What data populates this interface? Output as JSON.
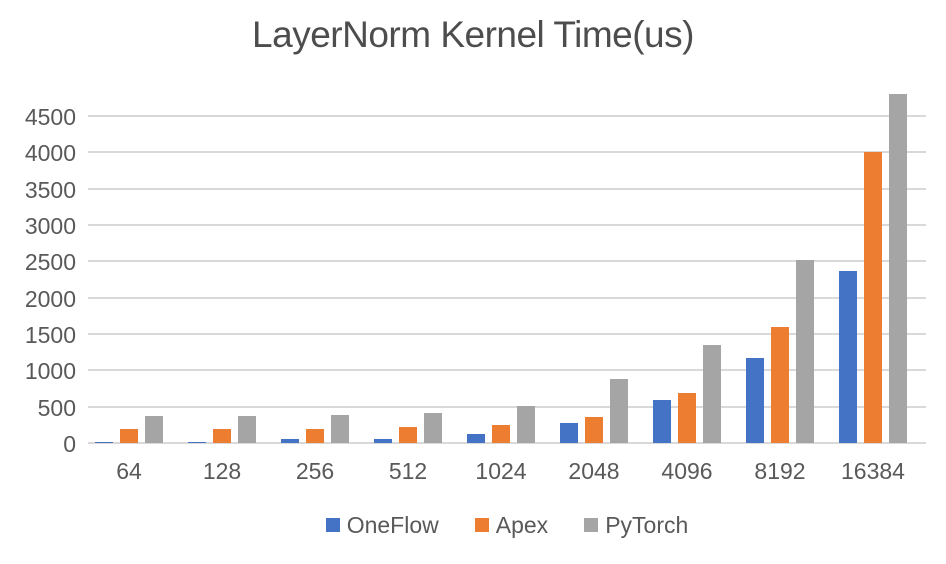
{
  "chart_data": {
    "type": "bar",
    "title": "LayerNorm Kernel Time(us)",
    "categories": [
      "64",
      "128",
      "256",
      "512",
      "1024",
      "2048",
      "4096",
      "8192",
      "16384"
    ],
    "series": [
      {
        "name": "OneFlow",
        "color": "#4472C4",
        "values": [
          10,
          10,
          50,
          55,
          120,
          280,
          585,
          1170,
          2370
        ]
      },
      {
        "name": "Apex",
        "color": "#ED7D31",
        "values": [
          190,
          190,
          195,
          220,
          245,
          360,
          690,
          1600,
          4000
        ]
      },
      {
        "name": "PyTorch",
        "color": "#A5A5A5",
        "values": [
          370,
          375,
          380,
          415,
          515,
          875,
          1350,
          2525,
          4800
        ]
      }
    ],
    "y_ticks": [
      0,
      500,
      1000,
      1500,
      2000,
      2500,
      3000,
      3500,
      4000,
      4500
    ],
    "ylim": [
      0,
      4870
    ],
    "xlabel": "",
    "ylabel": "",
    "grid": true,
    "legend_position": "bottom",
    "colors": {
      "grid": "#D9D9D9",
      "axis_text": "#595959",
      "title_text": "#4D4D4D",
      "background": "#FFFFFF"
    }
  }
}
